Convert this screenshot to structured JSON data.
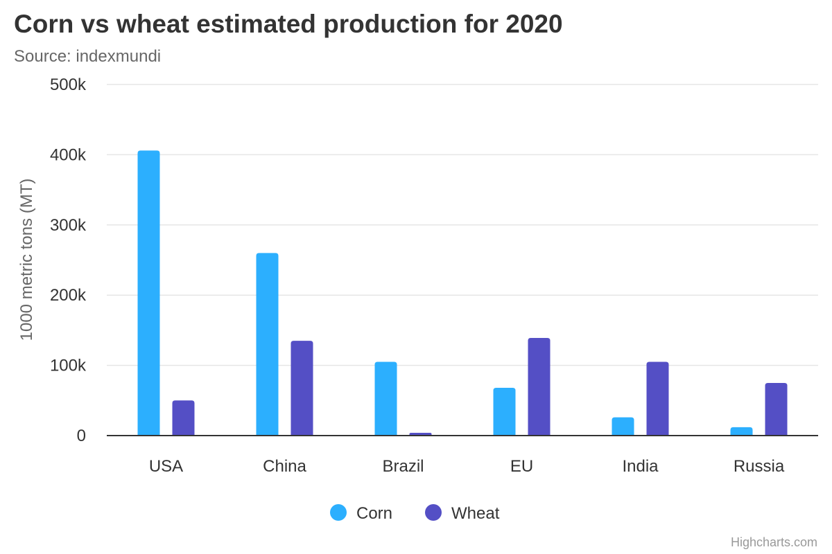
{
  "chart_data": {
    "type": "bar",
    "title": "Corn vs wheat estimated production for 2020",
    "subtitle": "Source: indexmundi",
    "xlabel": "",
    "ylabel": "1000 metric tons (MT)",
    "categories": [
      "USA",
      "China",
      "Brazil",
      "EU",
      "India",
      "Russia"
    ],
    "series": [
      {
        "name": "Corn",
        "color": "#2caffe",
        "values": [
          406000,
          260000,
          105000,
          68000,
          26000,
          12000
        ]
      },
      {
        "name": "Wheat",
        "color": "#544fc5",
        "values": [
          50000,
          135000,
          4000,
          139000,
          105000,
          75000
        ]
      }
    ],
    "ylim": [
      0,
      500000
    ],
    "yticks": [
      0,
      100000,
      200000,
      300000,
      400000,
      500000
    ],
    "ytick_labels": [
      "0",
      "100k",
      "200k",
      "300k",
      "400k",
      "500k"
    ],
    "grid": true,
    "legend_position": "bottom-center"
  },
  "credits": "Highcharts.com"
}
